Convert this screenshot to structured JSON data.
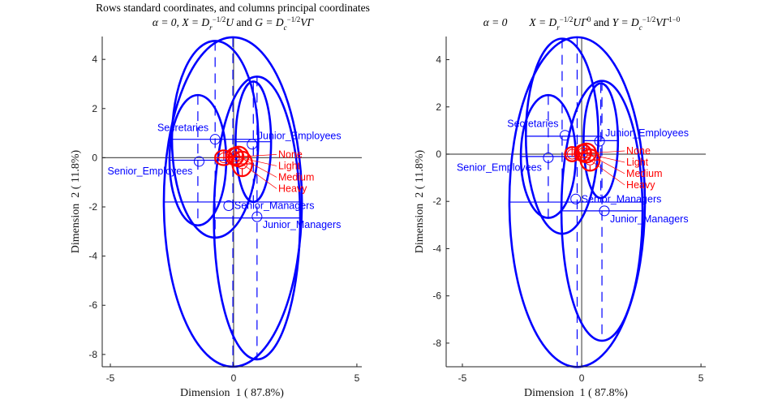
{
  "chart_data": [
    {
      "type": "scatter",
      "title_lines": [
        [
          {
            "t": "Rows standard coordinates, and columns principal coordinates"
          }
        ],
        [
          {
            "t": "α = 0, ",
            "m": true
          },
          {
            "t": "X = D",
            "m": true
          },
          {
            "sub": "r"
          },
          {
            "sup": "−1/2"
          },
          {
            "t": "U",
            "m": true
          },
          {
            "t": " and "
          },
          {
            "t": "G = D",
            "m": true
          },
          {
            "sub": "c"
          },
          {
            "sup": "−1/2"
          },
          {
            "t": "VΓ",
            "m": true
          }
        ]
      ],
      "xlabel": "Dimension  1 ( 87.8%)",
      "ylabel": "Dimension  2 ( 11.8%)",
      "xlim": [
        -5.33,
        5.2
      ],
      "ylim": [
        -8.5,
        4.93
      ],
      "xticks": [
        -5,
        0,
        5
      ],
      "yticks": [
        4,
        2,
        0,
        -2,
        -4,
        -6,
        -8
      ],
      "grid": false,
      "series": [
        {
          "group": "rows",
          "color": "#0000ff",
          "points": [
            {
              "label": "Senior_Managers",
              "x": -0.2,
              "y": -1.95,
              "ellipse": {
                "cx": -0.03,
                "cy": -1.8,
                "rx": 2.8,
                "ry": 6.7
              }
            },
            {
              "label": "Junior_Managers",
              "x": 0.95,
              "y": -2.4,
              "ellipse": {
                "cx": 0.95,
                "cy": -2.45,
                "rx": 1.75,
                "ry": 5.75
              }
            },
            {
              "label": "Senior_Employees",
              "x": -1.4,
              "y": -0.15,
              "ellipse": {
                "cx": -1.45,
                "cy": -0.1,
                "rx": 1.15,
                "ry": 2.65
              }
            },
            {
              "label": "Junior_Employees",
              "x": 0.75,
              "y": 0.55,
              "ellipse": {
                "cx": 0.8,
                "cy": 0.65,
                "rx": 0.72,
                "ry": 2.45
              }
            },
            {
              "label": "Secretaries",
              "x": -0.75,
              "y": 0.75,
              "ellipse": {
                "cx": -0.75,
                "cy": 0.75,
                "rx": 1.75,
                "ry": 4.0
              }
            }
          ]
        },
        {
          "group": "columns",
          "color": "#ff0000",
          "points": [
            {
              "label": "None",
              "x": -0.4,
              "y": 0.0,
              "ellipse": {
                "cx": -0.4,
                "cy": 0.0,
                "rx": 0.35,
                "ry": 0.3
              }
            },
            {
              "label": "Light",
              "x": 0.05,
              "y": 0.05,
              "ellipse": {
                "cx": 0.05,
                "cy": 0.05,
                "rx": 0.35,
                "ry": 0.35
              }
            },
            {
              "label": "Medium",
              "x": 0.2,
              "y": 0.05,
              "ellipse": {
                "cx": 0.2,
                "cy": 0.05,
                "rx": 0.4,
                "ry": 0.4
              }
            },
            {
              "label": "Heavy",
              "x": 0.35,
              "y": -0.25,
              "ellipse": {
                "cx": 0.35,
                "cy": -0.25,
                "rx": 0.4,
                "ry": 0.5
              }
            }
          ]
        }
      ]
    },
    {
      "type": "scatter",
      "title_lines": [
        [
          {
            "t": ""
          }
        ],
        [
          {
            "t": "α = 0",
            "m": true
          },
          {
            "t": "        "
          },
          {
            "t": "X = D",
            "m": true
          },
          {
            "sub": "r"
          },
          {
            "sup": "−1/2"
          },
          {
            "t": "UΓ",
            "m": true
          },
          {
            "sup": "0"
          },
          {
            "t": " and "
          },
          {
            "t": "Y = D",
            "m": true
          },
          {
            "sub": "c"
          },
          {
            "sup": "−1/2"
          },
          {
            "t": "VΓ",
            "m": true
          },
          {
            "sup": "1−0"
          }
        ]
      ],
      "xlabel": "Dimension  1 ( 87.8%)",
      "ylabel": "Dimension  2 ( 11.8%)",
      "xlim": [
        -5.68,
        5.2
      ],
      "ylim": [
        -9.0,
        4.98
      ],
      "xticks": [
        -5,
        0,
        5
      ],
      "yticks": [
        4,
        2,
        0,
        -2,
        -4,
        -6,
        -8
      ],
      "grid": false,
      "series": [
        {
          "group": "rows",
          "color": "#0000ff",
          "points": [
            {
              "label": "Senior_Managers",
              "x": -0.25,
              "y": -1.9,
              "ellipse": {
                "cx": -0.19,
                "cy": -2.03,
                "rx": 2.84,
                "ry": 6.98
              }
            },
            {
              "label": "Junior_Managers",
              "x": 0.95,
              "y": -2.4,
              "ellipse": {
                "cx": 0.85,
                "cy": -2.4,
                "rx": 1.7,
                "ry": 5.5
              }
            },
            {
              "label": "Senior_Employees",
              "x": -1.4,
              "y": -0.15,
              "ellipse": {
                "cx": -1.4,
                "cy": -0.1,
                "rx": 1.15,
                "ry": 2.6
              }
            },
            {
              "label": "Junior_Employees",
              "x": 0.75,
              "y": 0.55,
              "ellipse": {
                "cx": 0.8,
                "cy": 0.57,
                "rx": 0.72,
                "ry": 2.43
              }
            },
            {
              "label": "Secretaries",
              "x": -0.7,
              "y": 0.8,
              "ellipse": {
                "cx": -0.82,
                "cy": 0.76,
                "rx": 1.52,
                "ry": 4.13
              }
            }
          ]
        },
        {
          "group": "columns",
          "color": "#ff0000",
          "points": [
            {
              "label": "None",
              "x": -0.4,
              "y": 0.0,
              "ellipse": {
                "cx": -0.4,
                "cy": 0.0,
                "rx": 0.3,
                "ry": 0.3
              }
            },
            {
              "label": "Light",
              "x": 0.05,
              "y": 0.05,
              "ellipse": {
                "cx": 0.05,
                "cy": 0.05,
                "rx": 0.35,
                "ry": 0.35
              }
            },
            {
              "label": "Medium",
              "x": 0.2,
              "y": 0.05,
              "ellipse": {
                "cx": 0.2,
                "cy": 0.05,
                "rx": 0.4,
                "ry": 0.4
              }
            },
            {
              "label": "Heavy",
              "x": 0.35,
              "y": -0.25,
              "ellipse": {
                "cx": 0.35,
                "cy": -0.25,
                "rx": 0.4,
                "ry": 0.45
              }
            }
          ]
        }
      ]
    }
  ]
}
